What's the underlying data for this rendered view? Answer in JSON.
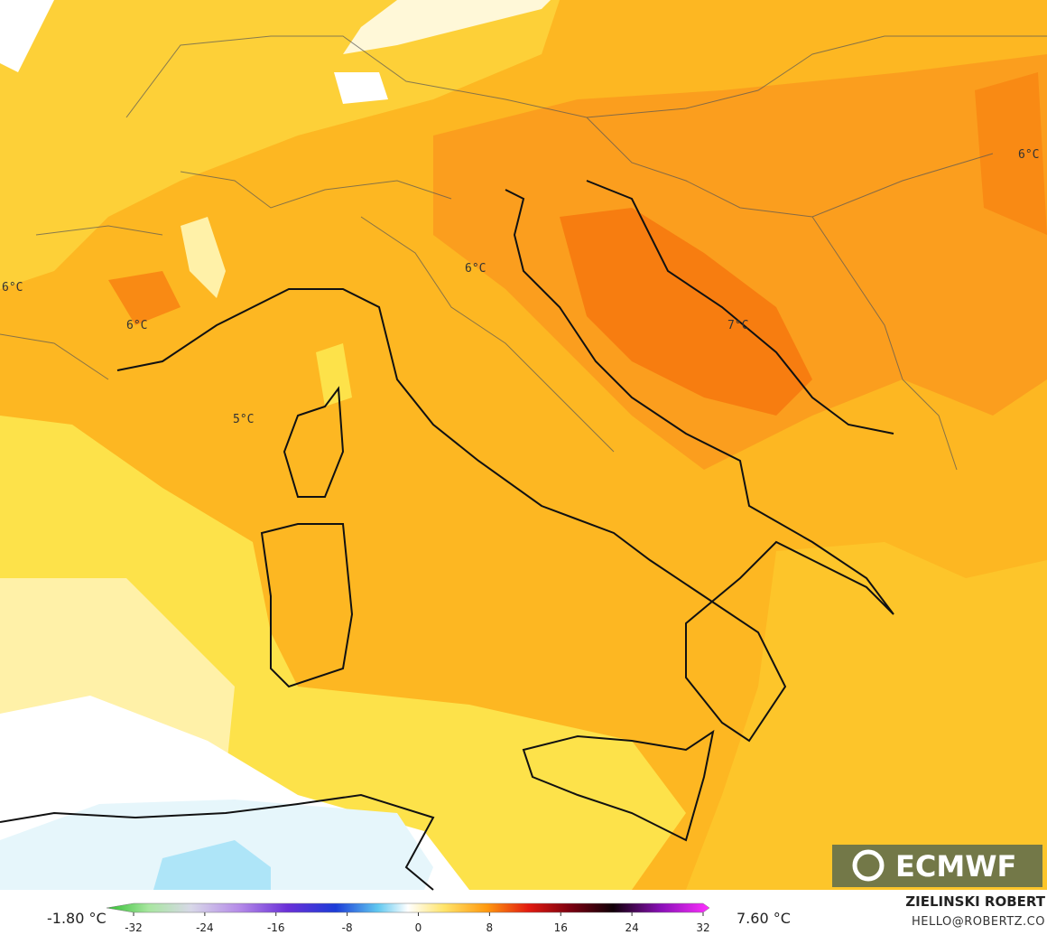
{
  "map": {
    "labels": [
      "6°C",
      "6°C",
      "6°C",
      "6°C",
      "5°C",
      "7°C"
    ]
  },
  "brand": "ECMWF",
  "colorbar": {
    "min_label": "-1.80 °C",
    "max_label": "7.60 °C",
    "range": [
      -32,
      32
    ],
    "ticks": [
      -32,
      -24,
      -16,
      -8,
      0,
      8,
      16,
      24,
      32
    ]
  },
  "credit": {
    "name": "ZIELINSKI ROBERT",
    "email": "HELLO@ROBERTZ.CO"
  }
}
